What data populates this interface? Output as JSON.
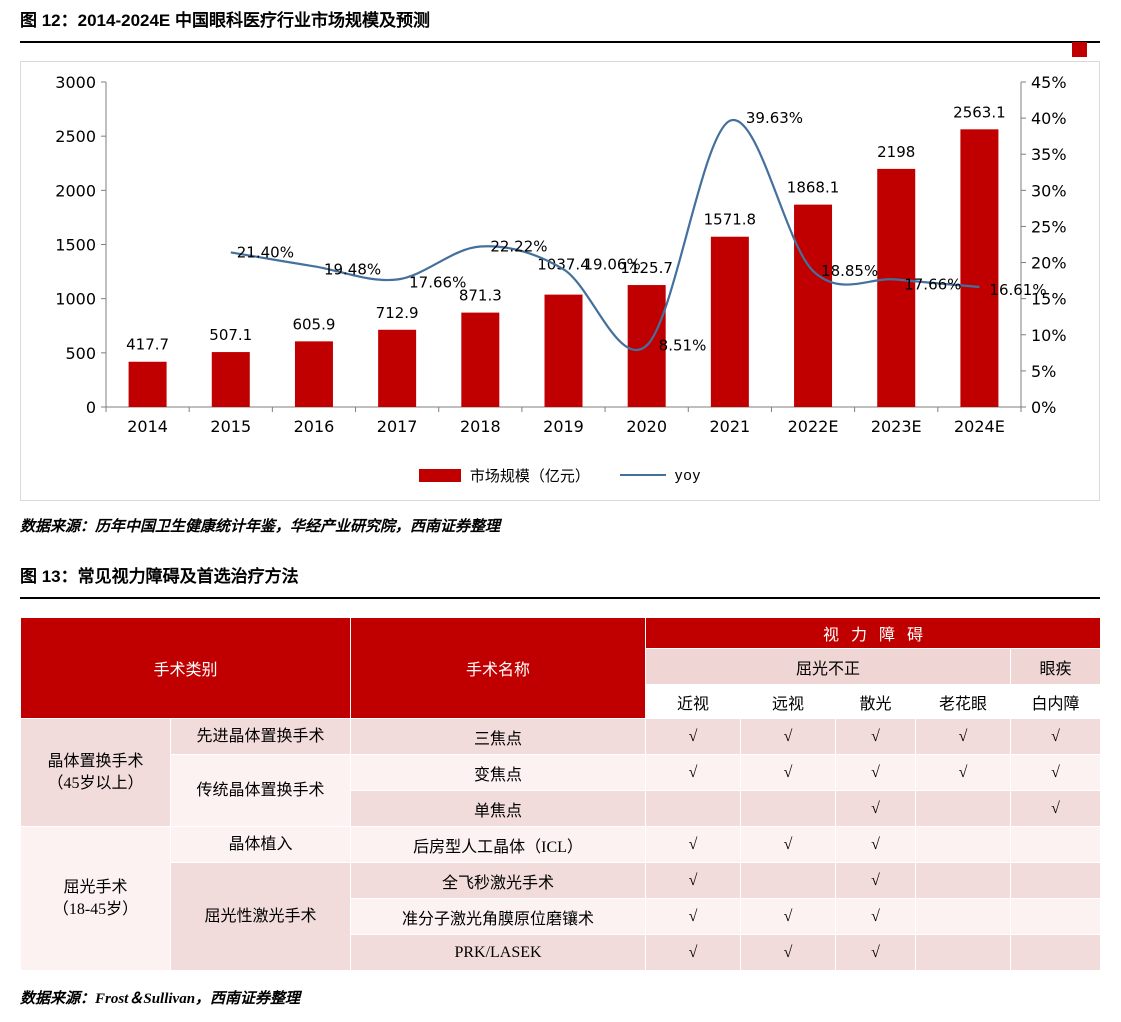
{
  "figure12": {
    "title": "图 12：2014-2024E 中国眼科医疗行业市场规模及预测",
    "source": "数据来源：历年中国卫生健康统计年鉴，华经产业研究院，西南证券整理"
  },
  "figure13": {
    "title": "图 13：常见视力障碍及首选治疗方法",
    "source": "数据来源：Frost＆Sullivan，西南证券整理"
  },
  "chart_data": {
    "type": "bar+line",
    "title": "2014-2024E 中国眼科医疗行业市场规模及预测",
    "categories": [
      "2014",
      "2015",
      "2016",
      "2017",
      "2018",
      "2019",
      "2020",
      "2021",
      "2022E",
      "2023E",
      "2024E"
    ],
    "bar_series": {
      "name": "市场规模（亿元）",
      "color": "#C00000",
      "axis": "left",
      "values": [
        417.7,
        507.1,
        605.9,
        712.9,
        871.3,
        1037.4,
        1125.7,
        1571.8,
        1868.1,
        2198,
        2563.1
      ],
      "labels": [
        "417.7",
        "507.1",
        "605.9",
        "712.9",
        "871.3",
        "1037.4",
        "1125.7",
        "1571.8",
        "1868.1",
        "2198",
        "2563.1"
      ]
    },
    "line_series": {
      "name": "yoy",
      "color": "#44709D",
      "axis": "right",
      "values": [
        null,
        21.4,
        19.48,
        17.66,
        22.22,
        19.06,
        8.51,
        39.63,
        18.85,
        17.66,
        16.61
      ],
      "labels": [
        "",
        "21.40%",
        "19.48%",
        "17.66%",
        "22.22%",
        "19.06%",
        "8.51%",
        "39.63%",
        "18.85%",
        "17.66%",
        "16.61%"
      ]
    },
    "y_left": {
      "min": 0,
      "max": 3000,
      "step": 500
    },
    "y_right": {
      "min": 0,
      "max": 45,
      "step": 5,
      "suffix": "%"
    },
    "legend_position": "bottom",
    "grid": false
  },
  "table": {
    "header": {
      "category": "手术类别",
      "name": "手术名称",
      "vision": "视力障碍",
      "refractive": "屈光不正",
      "eye_disease": "眼疾",
      "columns": [
        "近视",
        "远视",
        "散光",
        "老花眼",
        "白内障"
      ]
    },
    "groups": [
      {
        "label": "晶体置换手术\n（45岁以上）"
      },
      {
        "label": "屈光手术\n（18-45岁）"
      }
    ],
    "subgroups": [
      {
        "label": "先进晶体置换手术"
      },
      {
        "label": "传统晶体置换手术"
      },
      {
        "label": "晶体植入"
      },
      {
        "label": "屈光性激光手术"
      }
    ],
    "rows": [
      {
        "name": "三焦点",
        "checks": [
          "√",
          "√",
          "√",
          "√",
          "√"
        ]
      },
      {
        "name": "变焦点",
        "checks": [
          "√",
          "√",
          "√",
          "√",
          "√"
        ]
      },
      {
        "name": "单焦点",
        "checks": [
          "",
          "",
          "√",
          "",
          "√"
        ]
      },
      {
        "name": "后房型人工晶体（ICL）",
        "checks": [
          "√",
          "√",
          "√",
          "",
          ""
        ]
      },
      {
        "name": "全飞秒激光手术",
        "checks": [
          "√",
          "",
          "√",
          "",
          ""
        ]
      },
      {
        "name": "准分子激光角膜原位磨镶术",
        "checks": [
          "√",
          "√",
          "√",
          "",
          ""
        ]
      },
      {
        "name": "PRK/LASEK",
        "checks": [
          "√",
          "√",
          "√",
          "",
          ""
        ]
      }
    ]
  },
  "theme": {
    "accent_red": "#C00000",
    "line_blue": "#44709D",
    "row_pink": "#F2DCDB",
    "row_light": "#FBF2F1",
    "header_mid_pink": "#EFD5D3",
    "chart_border": "#D9D9D9"
  }
}
